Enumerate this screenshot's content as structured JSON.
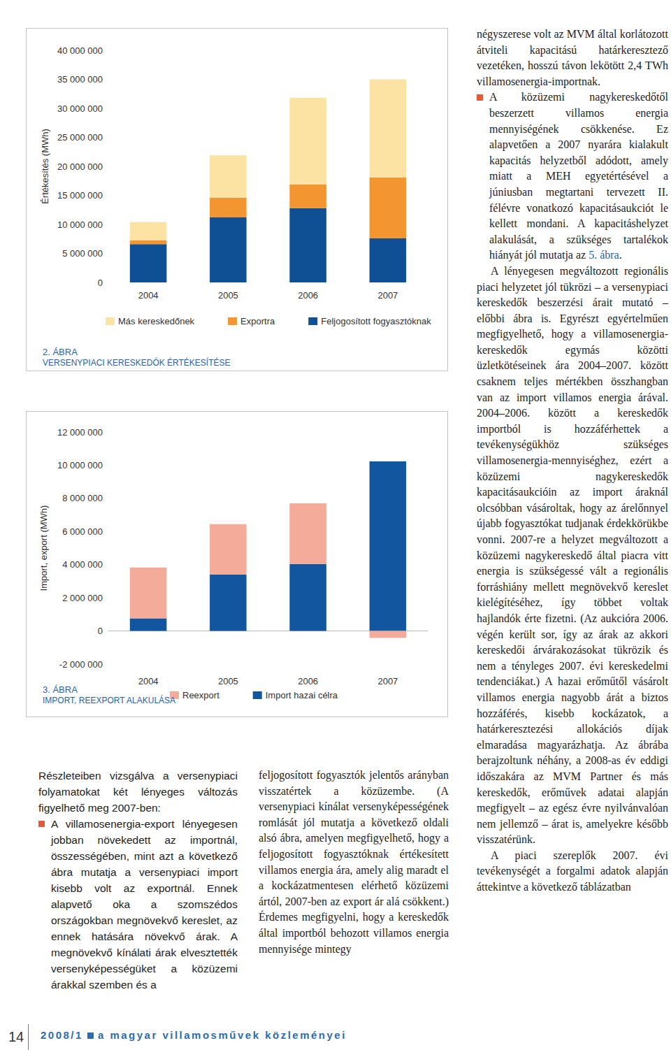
{
  "chart_data": [
    {
      "type": "bar",
      "stacked": true,
      "grid": false,
      "legend": "bottom",
      "title": "2. ÁBRA",
      "subtitle": "VERSENYPIACI KERESKEDŐK ÉRTÉKESÍTÉSE",
      "y_label": "Értékesítés (MWh)",
      "categories": [
        "2004",
        "2005",
        "2006",
        "2007"
      ],
      "series": [
        {
          "name": "Feljogosított fogyasztóknak",
          "color": "#0f4f94",
          "values": [
            6600000,
            11200000,
            12800000,
            7600000
          ]
        },
        {
          "name": "Exportra",
          "color": "#f39530",
          "values": [
            700000,
            3400000,
            4100000,
            10500000
          ]
        },
        {
          "name": "Más kereskedőnek",
          "color": "#fde3a3",
          "values": [
            3100000,
            7300000,
            14900000,
            16900000
          ]
        }
      ],
      "ylim": [
        0,
        40000000
      ],
      "yticks": [
        {
          "value": 0,
          "label": "0"
        },
        {
          "value": 5000000,
          "label": "5 000 000"
        },
        {
          "value": 10000000,
          "label": "10 000 000"
        },
        {
          "value": 15000000,
          "label": "15 000 000"
        },
        {
          "value": 20000000,
          "label": "20 000 000"
        },
        {
          "value": 25000000,
          "label": "25 000 000"
        },
        {
          "value": 30000000,
          "label": "30 000 000"
        },
        {
          "value": 35000000,
          "label": "35 000 000"
        },
        {
          "value": 40000000,
          "label": "40 000 000"
        }
      ]
    },
    {
      "type": "bar",
      "stacked": true,
      "grid": false,
      "legend": "bottom",
      "title": "3. ÁBRA",
      "subtitle": "IMPORT, REEXPORT ALAKULÁSA",
      "y_label": "Import, export (MWh)",
      "categories": [
        "2004",
        "2005",
        "2006",
        "2007"
      ],
      "series": [
        {
          "name": "Import hazai célra",
          "color": "#1356a0",
          "values": [
            760000,
            3410000,
            4040000,
            10230000
          ]
        },
        {
          "name": "Reexport",
          "color": "#f4ab9a",
          "values": [
            3070000,
            3030000,
            3660000,
            -420000
          ]
        }
      ],
      "ylim": [
        -2000000,
        12000000
      ],
      "yticks": [
        {
          "value": -2000000,
          "label": "-2 000 000"
        },
        {
          "value": 0,
          "label": "0"
        },
        {
          "value": 2000000,
          "label": "2 000 000"
        },
        {
          "value": 4000000,
          "label": "4 000 000"
        },
        {
          "value": 6000000,
          "label": "6 000 000"
        },
        {
          "value": 8000000,
          "label": "8 000 000"
        },
        {
          "value": 10000000,
          "label": "10 000 000"
        },
        {
          "value": 12000000,
          "label": "12 000 000"
        }
      ]
    }
  ],
  "document": {
    "columns": [
      [
        {
          "style": "plain",
          "text": "Részleteiben vizsgálva a versenypiaci folyamatokat két lényeges változás figyelhető meg 2007-ben:"
        },
        {
          "style": "bullet",
          "text": "A villamosenergia-export lényegesen jobban növekedett az importnál, összességében, mint azt a következő ábra mutatja a versenypiaci import kisebb volt az exportnál. Ennek alapvető oka a szomszédos országokban megnövekvő kereslet, az ennek hatására növekvő árak. A megnövekvő kínálati árak elvesztették versenyképességüket a közüzemi árakkal szemben és a"
        }
      ],
      [
        {
          "style": "plain",
          "text": "feljogosított fogyasztók jelentős arányban visszatértek a közüzembe. (A versenypiaci kínálat versenyképességének romlását jól mutatja a következő oldali alsó ábra, amelyen megfigyelhető, hogy a feljogosított fogyasztóknak értékesített villamos energia ára, amely alig maradt el a kockázatmentesen elérhető közüzemi ártól, 2007-ben az export ár alá csökkent.) Érdemes megfigyelni, hogy a kereskedők által importból behozott villamos energia mennyisége mintegy"
        }
      ],
      [
        {
          "style": "plain",
          "text": "négyszerese volt az MVM által korlátozott átviteli kapacitású határkeresztező vezetéken, hosszú távon lekötött 2,4 TWh villamosenergia-importnak."
        },
        {
          "style": "bullet",
          "parts": [
            {
              "text": "A közüzemi nagykereskedőtől beszerzett villamos energia mennyiségének csökkenése. Ez alapvetően a 2007 nyarára kialakult kapacitás helyzetből adódott, amely miatt a MEH egyetértésével a júniusban megtartani tervezett II. félévre vonatkozó kapacitásaukciót le kellett mondani. A kapacitáshelyzet alakulását, a szükséges tartalékok hiányát jól mutatja az "
            },
            {
              "text": "5. ábra",
              "link": true
            },
            {
              "text": "."
            }
          ]
        },
        {
          "style": "indent",
          "text": "A lényegesen megváltozott regionális piaci helyzetet jól tükrözi – a versenypiaci kereskedők beszerzési árait mutató – előbbi ábra is. Egyrészt egyértelműen megfigyelhető, hogy a villamosenergia-kereskedők egymás közötti üzletkötéseinek ára 2004–2007. között csaknem teljes mértékben összhangban van az import villamos energia árával. 2004–2006. között a kereskedők importból is hozzáférhettek a tevékenységükhöz szükséges villamosenergia-mennyiséghez, ezért a közüzemi nagykereskedők kapacitásaukcióin az import áraknál olcsóbban vásároltak, hogy az árelőnnyel újabb fogyasztókat tudjanak érdekkörükbe vonni. 2007-re a helyzet megváltozott a közüzemi nagykereskedő által piacra vitt energia is szükségessé vált a regionális forráshiány mellett megnövekvő kereslet kielégítéséhez, így többet voltak hajlandók érte fizetni. (Az aukcióra 2006. végén került sor, így az árak az akkori kereskedői árvárakozásokat tükrözik és nem a tényleges 2007. évi kereskedelmi tendenciákat.) A hazai erőműtől vásárolt villamos energia nagyobb árát a biztos hozzáférés, kisebb kockázatok, a határkeresztezési allokációs díjak elmaradása magyarázhatja. Az ábrába berajzoltunk néhány, a 2008-as év eddigi időszakára az MVM Partner és más kereskedők, erőművek adatai alapján megfigyelt – az egész évre nyilvánvalóan nem jellemző – árat is, amelyekre később visszatérünk."
        },
        {
          "style": "indent",
          "text": "A piaci szereplők 2007. évi tevékenységét a forgalmi adatok alapján áttekintve a következő táblázatban"
        }
      ]
    ],
    "footer": {
      "page": "14",
      "issue": "2008/1",
      "journal": "a magyar villamosművek közleményei"
    }
  }
}
